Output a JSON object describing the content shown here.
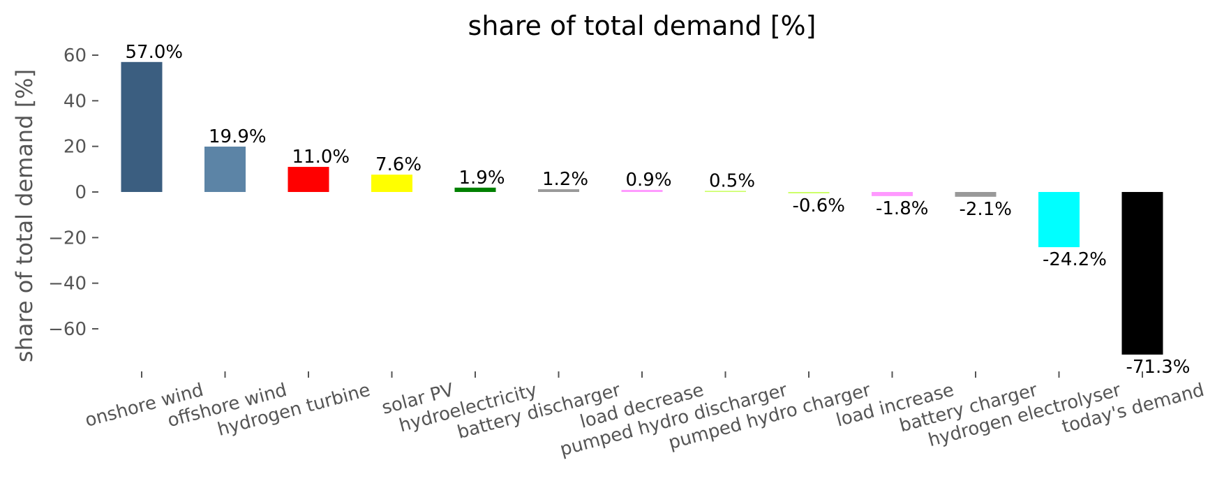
{
  "chart_data": {
    "type": "bar",
    "title": "share of total demand [%]",
    "xlabel": "",
    "ylabel": "share of total demand [%]",
    "ylim": [
      -80,
      65
    ],
    "yticks": [
      60,
      40,
      20,
      0,
      -20,
      -40,
      -60
    ],
    "ytick_labels": [
      "60",
      "40",
      "20",
      "0",
      "−20",
      "−40",
      "−60"
    ],
    "grid": false,
    "legend": "none",
    "categories": [
      "onshore wind",
      "offshore wind",
      "hydrogen turbine",
      "solar PV",
      "hydroelectricity",
      "battery discharger",
      "load decrease",
      "pumped hydro discharger",
      "pumped hydro charger",
      "load increase",
      "battery charger",
      "hydrogen electrolyser",
      "today's demand"
    ],
    "values": [
      57.0,
      19.9,
      11.0,
      7.6,
      1.9,
      1.2,
      0.9,
      0.5,
      -0.6,
      -1.8,
      -2.1,
      -24.2,
      -71.3
    ],
    "value_labels": [
      "57.0%",
      "19.9%",
      "11.0%",
      "7.6%",
      "1.9%",
      "1.2%",
      "0.9%",
      "0.5%",
      "-0.6%",
      "-1.8%",
      "-2.1%",
      "-24.2%",
      "-71.3%"
    ],
    "colors": [
      "#3b5e80",
      "#5c84a6",
      "#ff0000",
      "#ffff00",
      "#008000",
      "#999999",
      "#ff99ff",
      "#ccff66",
      "#ccff66",
      "#ff99ff",
      "#999999",
      "#00ffff",
      "#000000"
    ]
  }
}
